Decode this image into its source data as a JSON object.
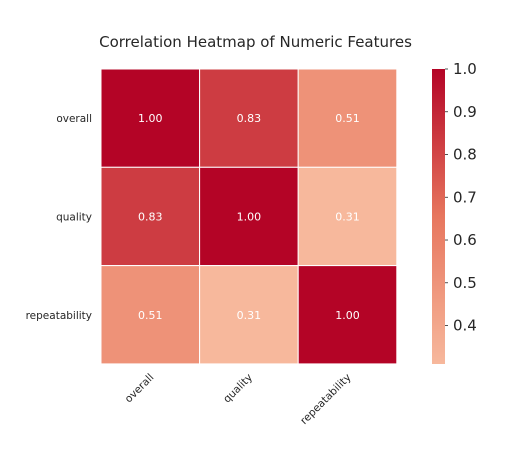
{
  "chart_data": {
    "type": "heatmap",
    "title": "Correlation Heatmap of Numeric Features",
    "rows": [
      "overall",
      "quality",
      "repeatability"
    ],
    "columns": [
      "overall",
      "quality",
      "repeatability"
    ],
    "values": [
      [
        1.0,
        0.83,
        0.51
      ],
      [
        0.83,
        1.0,
        0.31
      ],
      [
        0.51,
        0.31,
        1.0
      ]
    ],
    "cell_labels": [
      [
        "1.00",
        "0.83",
        "0.51"
      ],
      [
        "0.83",
        "1.00",
        "0.31"
      ],
      [
        "0.51",
        "0.31",
        "1.00"
      ]
    ],
    "colorbar": {
      "range": [
        0.31,
        1.0
      ],
      "ticks": [
        0.4,
        0.5,
        0.6,
        0.7,
        0.8,
        0.9,
        1.0
      ],
      "tick_labels": [
        "0.4",
        "0.5",
        "0.6",
        "0.7",
        "0.8",
        "0.9",
        "1.0"
      ],
      "colors": {
        "low": "#f7b89c",
        "mid": "#e7765e",
        "high": "#b40426"
      }
    },
    "colormap": "coolwarm (upper half)",
    "x_tick_rotation": "45deg",
    "grid": false
  }
}
